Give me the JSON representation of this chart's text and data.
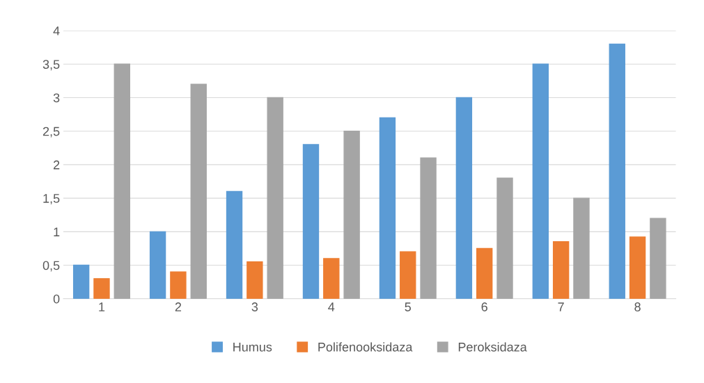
{
  "chart_data": {
    "type": "bar",
    "categories": [
      "1",
      "2",
      "3",
      "4",
      "5",
      "6",
      "7",
      "8"
    ],
    "series": [
      {
        "name": "Humus",
        "color": "#5b9bd5",
        "values": [
          0.5,
          1.0,
          1.6,
          2.3,
          2.7,
          3.0,
          3.5,
          3.8
        ]
      },
      {
        "name": "Polifenooksidaza",
        "color": "#ed7d31",
        "values": [
          0.3,
          0.4,
          0.55,
          0.6,
          0.7,
          0.75,
          0.85,
          0.92
        ]
      },
      {
        "name": "Peroksidaza",
        "color": "#a5a5a5",
        "values": [
          3.5,
          3.2,
          3.0,
          2.5,
          2.1,
          1.8,
          1.5,
          1.2
        ]
      }
    ],
    "ylim": [
      0,
      4
    ],
    "yticks": [
      0,
      {
        "value": 0.5,
        "label": "0,5"
      },
      1,
      {
        "value": 1.5,
        "label": "1,5"
      },
      2,
      {
        "value": 2.5,
        "label": "2,5"
      },
      3,
      {
        "value": 3.5,
        "label": "3,5"
      },
      4
    ],
    "grid": "y",
    "legend": "bottom"
  }
}
